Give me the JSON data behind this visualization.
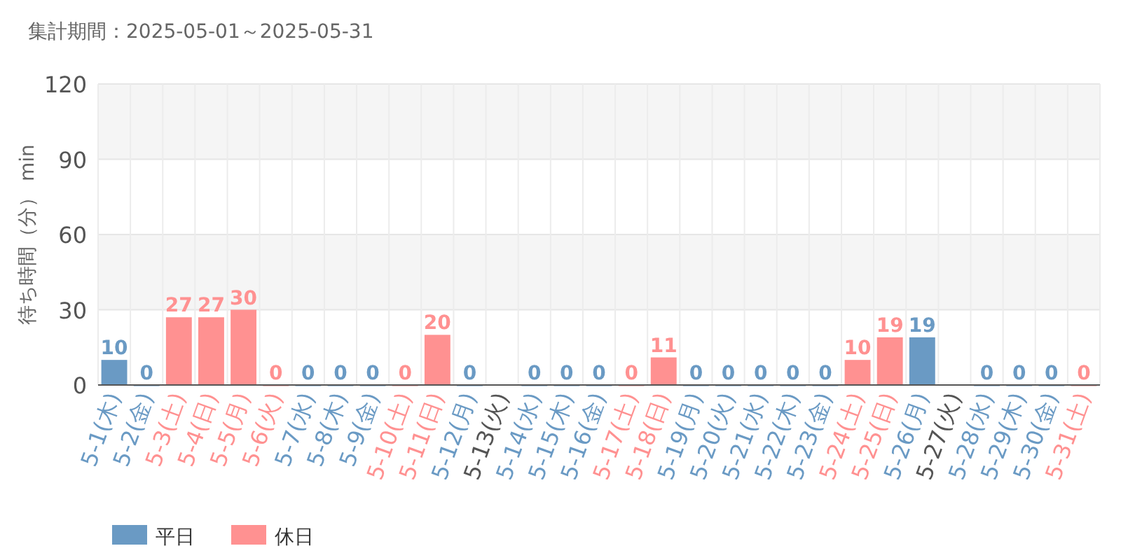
{
  "chart_data": {
    "type": "bar",
    "title": "集計期間：2025-05-01～2025-05-31",
    "ylabel": "待ち時間（分） min",
    "categories": [
      "5-1(木)",
      "5-2(金)",
      "5-3(土)",
      "5-4(日)",
      "5-5(月)",
      "5-6(火)",
      "5-7(水)",
      "5-8(木)",
      "5-9(金)",
      "5-10(土)",
      "5-11(日)",
      "5-12(月)",
      "5-13(火)",
      "5-14(水)",
      "5-15(木)",
      "5-16(金)",
      "5-17(土)",
      "5-18(日)",
      "5-19(月)",
      "5-20(火)",
      "5-21(水)",
      "5-22(木)",
      "5-23(金)",
      "5-24(土)",
      "5-25(日)",
      "5-26(月)",
      "5-27(火)",
      "5-28(水)",
      "5-29(木)",
      "5-30(金)",
      "5-31(土)"
    ],
    "series": [
      {
        "name": "平日",
        "color": "#6a9ac4",
        "values": [
          10,
          0,
          null,
          null,
          null,
          null,
          0,
          0,
          0,
          null,
          null,
          0,
          null,
          0,
          0,
          0,
          null,
          null,
          0,
          0,
          0,
          0,
          0,
          null,
          null,
          19,
          null,
          0,
          0,
          0,
          null
        ]
      },
      {
        "name": "休日",
        "color": "#ff9191",
        "values": [
          null,
          null,
          27,
          27,
          30,
          0,
          null,
          null,
          null,
          0,
          20,
          null,
          null,
          null,
          null,
          null,
          0,
          11,
          null,
          null,
          null,
          null,
          null,
          10,
          19,
          null,
          null,
          null,
          null,
          null,
          0
        ]
      }
    ],
    "ylim": [
      0,
      120
    ],
    "yticks": [
      0,
      30,
      60,
      90,
      120
    ],
    "grid": true,
    "data_labels": true,
    "legend": "bottom left",
    "bands": [
      {
        "axis": "y",
        "from": 30,
        "to": 60,
        "color": "#f5f5f5"
      },
      {
        "axis": "y",
        "from": 90,
        "to": 120,
        "color": "#f5f5f5"
      }
    ]
  }
}
